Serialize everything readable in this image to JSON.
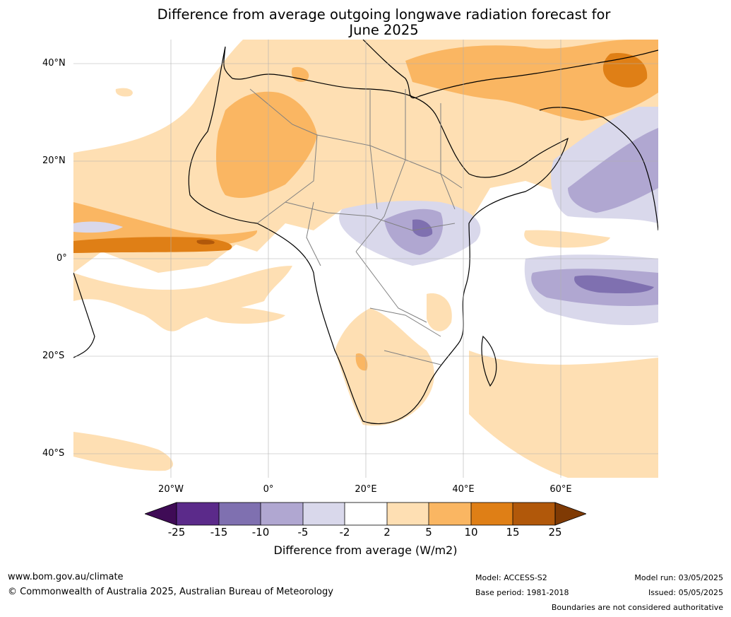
{
  "title": {
    "line1": "Difference from average outgoing longwave radiation forecast for",
    "line2": "June 2025"
  },
  "map": {
    "lat_ticks": [
      "40°N",
      "20°N",
      "0°",
      "20°S",
      "40°S"
    ],
    "lon_ticks": [
      "20°W",
      "0°",
      "20°E",
      "40°E",
      "60°E"
    ],
    "ocean_color": "#ffffff",
    "land_outline_color": "#000000",
    "border_color": "#808080"
  },
  "colorbar": {
    "tick_labels": [
      "-25",
      "-15",
      "-10",
      "-5",
      "-2",
      "2",
      "5",
      "10",
      "15",
      "25"
    ],
    "colors": [
      "#3f0b56",
      "#5b2a8a",
      "#7f70b0",
      "#b0a7d1",
      "#d9d8eb",
      "#ffffff",
      "#fedfb3",
      "#fab662",
      "#df7f16",
      "#b1580a",
      "#7f3a04"
    ],
    "label": "Difference from average (W/m2)"
  },
  "footer": {
    "website": "www.bom.gov.au/climate",
    "copyright": "© Commonwealth of Australia 2025, Australian Bureau of Meteorology",
    "model": "Model: ACCESS-S2",
    "base_period": "Base period: 1981-2018",
    "model_run": "Model run: 03/05/2025",
    "issued": "Issued: 05/05/2025",
    "disclaimer": "Boundaries are not considered authoritative"
  }
}
